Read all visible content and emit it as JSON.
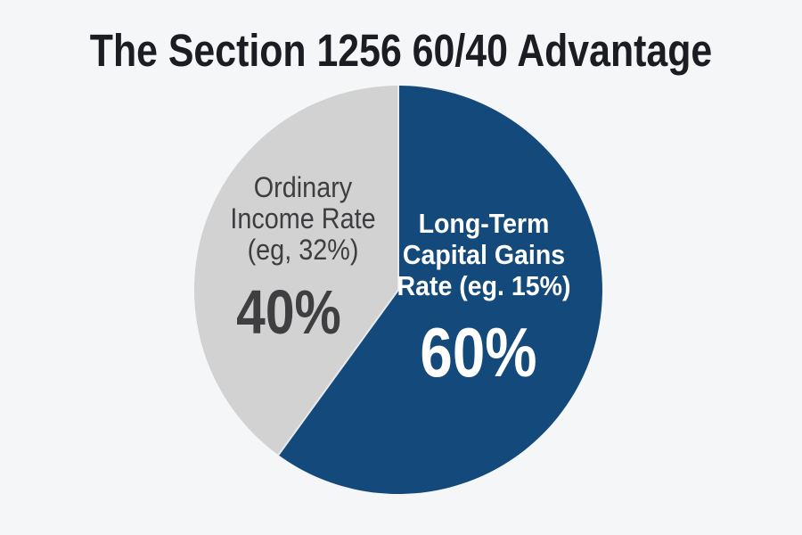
{
  "page": {
    "background_color": "#f5f6f7"
  },
  "chart_data": {
    "type": "pie",
    "title": "The Section 1256 60/40 Advantage",
    "title_color": "#1c1c23",
    "direction": "clockwise",
    "start_at": "12-oclock",
    "legend": "none",
    "labels_inside": true,
    "divider_color": "#e9eaec",
    "slices": [
      {
        "name": "Long-Term Capital Gains Rate (eg. 15%)",
        "value": 60,
        "pct_label": "60%",
        "label_lines": "Long-Term\nCapital Gains\nRate (eg. 15%)",
        "color": "#14497b",
        "text_color": "#ffffff"
      },
      {
        "name": "Ordinary Income Rate (eg, 32%)",
        "value": 40,
        "pct_label": "40%",
        "label_lines": "Ordinary\nIncome Rate\n(eg, 32%)",
        "color": "#d2d2d2",
        "text_color": "#3e3e41"
      }
    ]
  }
}
